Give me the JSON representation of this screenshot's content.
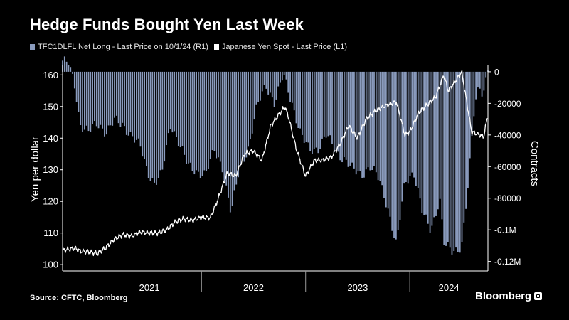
{
  "title": "Hedge Funds Bought Yen Last Week",
  "source": "Source: CFTC, Bloomberg",
  "brand": "Bloomberg",
  "colors": {
    "bars": "#8a9bbd",
    "line": "#ffffff",
    "background": "#000000",
    "axis": "#ffffff"
  },
  "chart_data": {
    "type": "line+bar",
    "x_axis": {
      "years": [
        "2021",
        "2022",
        "2023",
        "2024"
      ],
      "range": [
        "2020-09",
        "2024-10"
      ]
    },
    "left_axis": {
      "label": "Yen per dollar",
      "range": [
        98,
        163
      ],
      "ticks": [
        100,
        110,
        120,
        130,
        140,
        150,
        160
      ]
    },
    "right_axis": {
      "label": "Contracts",
      "range": [
        -126000,
        4000
      ],
      "ticks": [
        0,
        -20000,
        -40000,
        -60000,
        -80000,
        -100000,
        -120000
      ],
      "tick_labels": [
        "0",
        "-20000",
        "-40000",
        "-60000",
        "-80000",
        "-0.1M",
        "-0.12M"
      ]
    },
    "legend": [
      "TFC1DLFL Net Long - Last Price on 10/1/24 (R1)",
      "Japanese Yen Spot - Last Price (L1)"
    ],
    "series": [
      {
        "name": "TFC1DLFL Net Long - Last Price on 10/1/24 (R1)",
        "axis": "right",
        "kind": "bar",
        "color": "#8a9bbd",
        "points": [
          [
            "2020-09-01",
            7000
          ],
          [
            "2020-09-22",
            5000
          ],
          [
            "2020-10-15",
            -10000
          ],
          [
            "2020-11-01",
            -33000
          ],
          [
            "2020-12-01",
            -38000
          ],
          [
            "2021-01-01",
            -33000
          ],
          [
            "2021-02-01",
            -38000
          ],
          [
            "2021-03-01",
            -31000
          ],
          [
            "2021-04-01",
            -34000
          ],
          [
            "2021-05-01",
            -40000
          ],
          [
            "2021-06-01",
            -48000
          ],
          [
            "2021-06-25",
            -63000
          ],
          [
            "2021-07-20",
            -70000
          ],
          [
            "2021-08-15",
            -65000
          ],
          [
            "2021-09-15",
            -33000
          ],
          [
            "2021-10-15",
            -45000
          ],
          [
            "2021-11-15",
            -60000
          ],
          [
            "2021-12-15",
            -63000
          ],
          [
            "2022-01-15",
            -65000
          ],
          [
            "2022-02-15",
            -50000
          ],
          [
            "2022-03-15",
            -60000
          ],
          [
            "2022-04-15",
            -90000
          ],
          [
            "2022-05-15",
            -60000
          ],
          [
            "2022-06-15",
            -48000
          ],
          [
            "2022-07-15",
            -22000
          ],
          [
            "2022-08-15",
            -8000
          ],
          [
            "2022-09-15",
            -20000
          ],
          [
            "2022-10-15",
            -2000
          ],
          [
            "2022-11-15",
            -20000
          ],
          [
            "2022-12-15",
            -40000
          ],
          [
            "2023-01-15",
            -50000
          ],
          [
            "2023-02-15",
            -48000
          ],
          [
            "2023-03-15",
            -40000
          ],
          [
            "2023-04-15",
            -50000
          ],
          [
            "2023-05-15",
            -55000
          ],
          [
            "2023-06-15",
            -62000
          ],
          [
            "2023-07-15",
            -65000
          ],
          [
            "2023-08-15",
            -60000
          ],
          [
            "2023-09-15",
            -68000
          ],
          [
            "2023-10-15",
            -85000
          ],
          [
            "2023-11-15",
            -110000
          ],
          [
            "2023-12-15",
            -70000
          ],
          [
            "2024-01-15",
            -63000
          ],
          [
            "2024-02-15",
            -90000
          ],
          [
            "2024-03-15",
            -100000
          ],
          [
            "2024-04-15",
            -80000
          ],
          [
            "2024-05-01",
            -110000
          ],
          [
            "2024-06-01",
            -114000
          ],
          [
            "2024-07-01",
            -110000
          ],
          [
            "2024-07-25",
            -70000
          ],
          [
            "2024-08-15",
            -22000
          ],
          [
            "2024-09-01",
            -8000
          ],
          [
            "2024-09-15",
            -14000
          ],
          [
            "2024-10-01",
            3000
          ]
        ]
      },
      {
        "name": "Japanese Yen Spot - Last Price (L1)",
        "axis": "left",
        "kind": "line",
        "color": "#ffffff",
        "points": [
          [
            "2020-09-01",
            104.5
          ],
          [
            "2020-10-15",
            105.2
          ],
          [
            "2020-11-01",
            104.3
          ],
          [
            "2020-12-01",
            104.0
          ],
          [
            "2021-01-01",
            103.5
          ],
          [
            "2021-02-01",
            105.5
          ],
          [
            "2021-03-01",
            108.0
          ],
          [
            "2021-04-01",
            109.5
          ],
          [
            "2021-05-01",
            109.0
          ],
          [
            "2021-06-01",
            110.3
          ],
          [
            "2021-07-01",
            110.0
          ],
          [
            "2021-08-01",
            110.0
          ],
          [
            "2021-09-01",
            111.0
          ],
          [
            "2021-10-01",
            113.5
          ],
          [
            "2021-11-01",
            114.5
          ],
          [
            "2021-12-01",
            114.0
          ],
          [
            "2022-01-01",
            115.0
          ],
          [
            "2022-02-01",
            114.8
          ],
          [
            "2022-03-01",
            121.0
          ],
          [
            "2022-04-01",
            129.0
          ],
          [
            "2022-05-01",
            128.0
          ],
          [
            "2022-06-01",
            135.0
          ],
          [
            "2022-07-01",
            136.0
          ],
          [
            "2022-08-01",
            133.0
          ],
          [
            "2022-09-01",
            144.0
          ],
          [
            "2022-10-20",
            150.0
          ],
          [
            "2022-11-01",
            147.0
          ],
          [
            "2022-12-01",
            136.0
          ],
          [
            "2023-01-01",
            128.0
          ],
          [
            "2023-02-01",
            133.0
          ],
          [
            "2023-03-01",
            133.0
          ],
          [
            "2023-04-01",
            134.0
          ],
          [
            "2023-05-01",
            138.0
          ],
          [
            "2023-06-01",
            144.0
          ],
          [
            "2023-07-01",
            140.0
          ],
          [
            "2023-08-01",
            146.0
          ],
          [
            "2023-09-01",
            148.5
          ],
          [
            "2023-10-01",
            150.0
          ],
          [
            "2023-11-15",
            151.5
          ],
          [
            "2023-12-15",
            141.0
          ],
          [
            "2024-01-01",
            142.0
          ],
          [
            "2024-02-01",
            148.0
          ],
          [
            "2024-03-01",
            150.5
          ],
          [
            "2024-04-01",
            153.0
          ],
          [
            "2024-04-29",
            160.0
          ],
          [
            "2024-05-15",
            155.0
          ],
          [
            "2024-06-01",
            157.0
          ],
          [
            "2024-07-01",
            161.0
          ],
          [
            "2024-08-05",
            142.0
          ],
          [
            "2024-09-16",
            140.5
          ],
          [
            "2024-10-01",
            147.5
          ]
        ]
      }
    ]
  }
}
